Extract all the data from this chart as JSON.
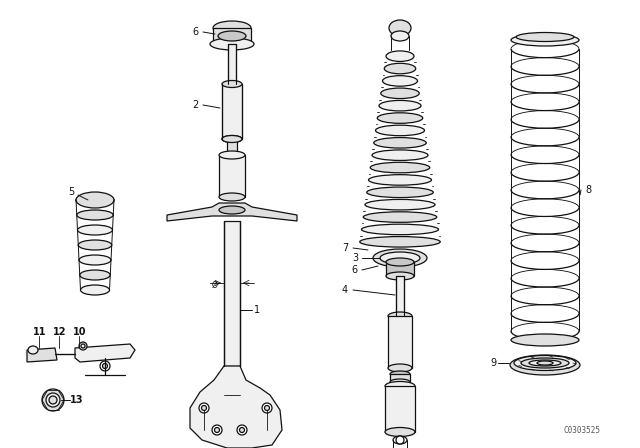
{
  "background_color": "#ffffff",
  "image_code": "C0303525",
  "fig_width": 6.4,
  "fig_height": 4.48,
  "dpi": 100,
  "line_color": "#111111",
  "fill_light": "#f0f0f0",
  "fill_mid": "#e0e0e0",
  "fill_dark": "#c8c8c8"
}
